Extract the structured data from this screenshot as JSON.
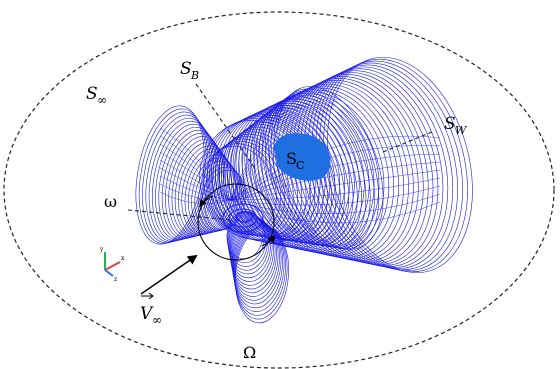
{
  "labels": {
    "s_inf": "S",
    "s_inf_sub": "∞",
    "s_b": "S",
    "s_b_sub": "B",
    "s_w": "S",
    "s_w_sub": "W",
    "s_c": "S",
    "s_c_sub": "C",
    "omega_small": "ω",
    "v_inf": "V",
    "v_inf_sub": "∞",
    "domain": "Ω"
  },
  "axis_triad": {
    "x_label": "x",
    "y_label": "y",
    "z_label": "z"
  },
  "colors": {
    "wake_mesh": "#1a1ae6",
    "sc_patch": "#1f6fe0",
    "boundary": "#222222",
    "axis_x": "#e04040",
    "axis_y": "#20b050",
    "axis_z": "#3070ff"
  }
}
